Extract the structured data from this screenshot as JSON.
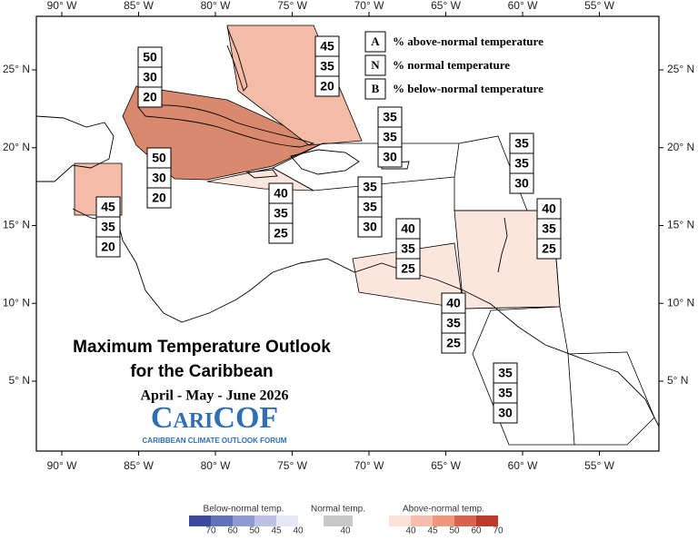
{
  "map": {
    "lon_ticks": [
      {
        "value": -90,
        "label": "90° W"
      },
      {
        "value": -85,
        "label": "85° W"
      },
      {
        "value": -80,
        "label": "80° W"
      },
      {
        "value": -75,
        "label": "75° W"
      },
      {
        "value": -70,
        "label": "70° W"
      },
      {
        "value": -65,
        "label": "65° W"
      },
      {
        "value": -60,
        "label": "60° W"
      },
      {
        "value": -55,
        "label": "55° W"
      }
    ],
    "lat_ticks": [
      {
        "value": 25,
        "label": "25° N"
      },
      {
        "value": 20,
        "label": "20° N"
      },
      {
        "value": 15,
        "label": "15° N"
      },
      {
        "value": 10,
        "label": "10° N"
      },
      {
        "value": 5,
        "label": "5° N"
      }
    ],
    "regions": [
      {
        "values": [
          50,
          30,
          20
        ],
        "color": "#d98a6e"
      },
      {
        "values": [
          50,
          30,
          20
        ],
        "color": "#d98a6e"
      },
      {
        "values": [
          45,
          35,
          20
        ],
        "color": "#f4bba6"
      },
      {
        "values": [
          45,
          35,
          20
        ],
        "color": "#f4bba6"
      },
      {
        "values": [
          35,
          35,
          30
        ],
        "color": "none"
      },
      {
        "values": [
          35,
          35,
          30
        ],
        "color": "none"
      },
      {
        "values": [
          40,
          35,
          25
        ],
        "color": "#fbe6dd"
      },
      {
        "values": [
          35,
          35,
          30
        ],
        "color": "none"
      },
      {
        "values": [
          40,
          35,
          25
        ],
        "color": "#fbe6dd"
      },
      {
        "values": [
          40,
          35,
          25
        ],
        "color": "#fbe6dd"
      },
      {
        "values": [
          40,
          35,
          25
        ],
        "color": "#fbe6dd"
      },
      {
        "values": [
          35,
          35,
          30
        ],
        "color": "none"
      }
    ],
    "key": [
      {
        "letter": "A",
        "text": "% above-normal temperature"
      },
      {
        "letter": "N",
        "text": "% normal temperature"
      },
      {
        "letter": "B",
        "text": "% below-normal temperature"
      }
    ],
    "title": [
      "Maximum Temperature Outlook",
      "for the Caribbean"
    ],
    "season": "April - May - June 2026",
    "logo": {
      "name": "CariCOF",
      "subtitle": "CARIBBEAN CLIMATE OUTLOOK FORUM"
    }
  },
  "legend_bar": [
    {
      "title": "Below-normal temp.",
      "colors": [
        "#3b4a9c",
        "#6272b8",
        "#8e9ad0",
        "#bcc3e6",
        "#e4e8f6"
      ],
      "labels": [
        70,
        60,
        50,
        45,
        40
      ]
    },
    {
      "title": "Normal temp.",
      "colors": [
        "#c8c8c8"
      ],
      "labels": [
        40
      ]
    },
    {
      "title": "Above-normal temp.",
      "colors": [
        "#fbe1d6",
        "#f5bfae",
        "#ee977d",
        "#d7654d",
        "#bb3a2a"
      ],
      "labels": [
        40,
        45,
        50,
        60,
        70
      ]
    }
  ]
}
